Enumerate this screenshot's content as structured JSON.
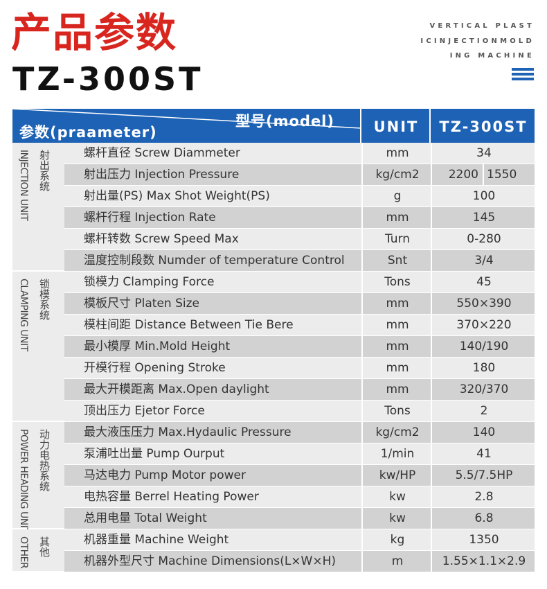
{
  "header": {
    "title_cn": "产品参数",
    "model": "TZ-300ST",
    "tagline": [
      "VERTICAL PLAST",
      "ICINJECTIONMOLD",
      "ING MACHINE"
    ],
    "menu_icon": "hamburger-icon",
    "accent": "#1d62b4",
    "title_color": "#d8261f"
  },
  "table": {
    "param_header": "参数(praameter)",
    "model_header": "型号(model)",
    "unit_header": "UNIT",
    "value_header": "TZ-300ST",
    "groups": [
      {
        "cn": "射出系统",
        "en": "INJECTION UNIT"
      },
      {
        "cn": "锁模系统",
        "en": "CLAMPING UNIT"
      },
      {
        "cn": "动力电热系统",
        "en": "POWER HEADING UNIT"
      },
      {
        "cn": "其他",
        "en": "OTHER"
      }
    ],
    "rows": [
      {
        "param": "螺杆直径 Screw Diammeter",
        "unit": "mm",
        "value": "34"
      },
      {
        "param": "射出压力 Injection Pressure",
        "unit": "kg/cm2",
        "value": "2200",
        "value2": "1550"
      },
      {
        "param": "射出量(PS) Max Shot Weight(PS)",
        "unit": "g",
        "value": "100"
      },
      {
        "param": "螺杆行程 Injection Rate",
        "unit": "mm",
        "value": "145"
      },
      {
        "param": "螺杆转数 Screw Speed Max",
        "unit": "Turn",
        "value": "0-280"
      },
      {
        "param": "温度控制段数 Numder of temperature Control",
        "unit": "Snt",
        "value": "3/4"
      },
      {
        "param": "锁模力 Clamping Force",
        "unit": "Tons",
        "value": "45"
      },
      {
        "param": "模板尺寸 Platen Size",
        "unit": "mm",
        "value": "550×390"
      },
      {
        "param": "模柱间距 Distance Between Tie Bere",
        "unit": "mm",
        "value": "370×220"
      },
      {
        "param": "最小模厚 Min.Mold Height",
        "unit": "mm",
        "value": "140/190"
      },
      {
        "param": "开模行程 Opening Stroke",
        "unit": "mm",
        "value": "180"
      },
      {
        "param": "最大开模距离 Max.Open daylight",
        "unit": "mm",
        "value": "320/370"
      },
      {
        "param": "顶出压力 Ejetor Force",
        "unit": "Tons",
        "value": "2"
      },
      {
        "param": "最大液压压力 Max.Hydaulic Pressure",
        "unit": "kg/cm2",
        "value": "140"
      },
      {
        "param": "泵浦吐出量 Pump Ourput",
        "unit": "1/min",
        "value": "41"
      },
      {
        "param": "马达电力 Pump Motor power",
        "unit": "kw/HP",
        "value": "5.5/7.5HP"
      },
      {
        "param": "电热容量 Berrel Heating Power",
        "unit": "kw",
        "value": "2.8"
      },
      {
        "param": "总用电量 Total Weight",
        "unit": "kw",
        "value": "6.8"
      },
      {
        "param": "机器重量 Machine Weight",
        "unit": "kg",
        "value": "1350"
      },
      {
        "param": "机器外型尺寸 Machine Dimensions(L×W×H)",
        "unit": "m",
        "value": "1.55×1.1×2.9"
      }
    ]
  }
}
